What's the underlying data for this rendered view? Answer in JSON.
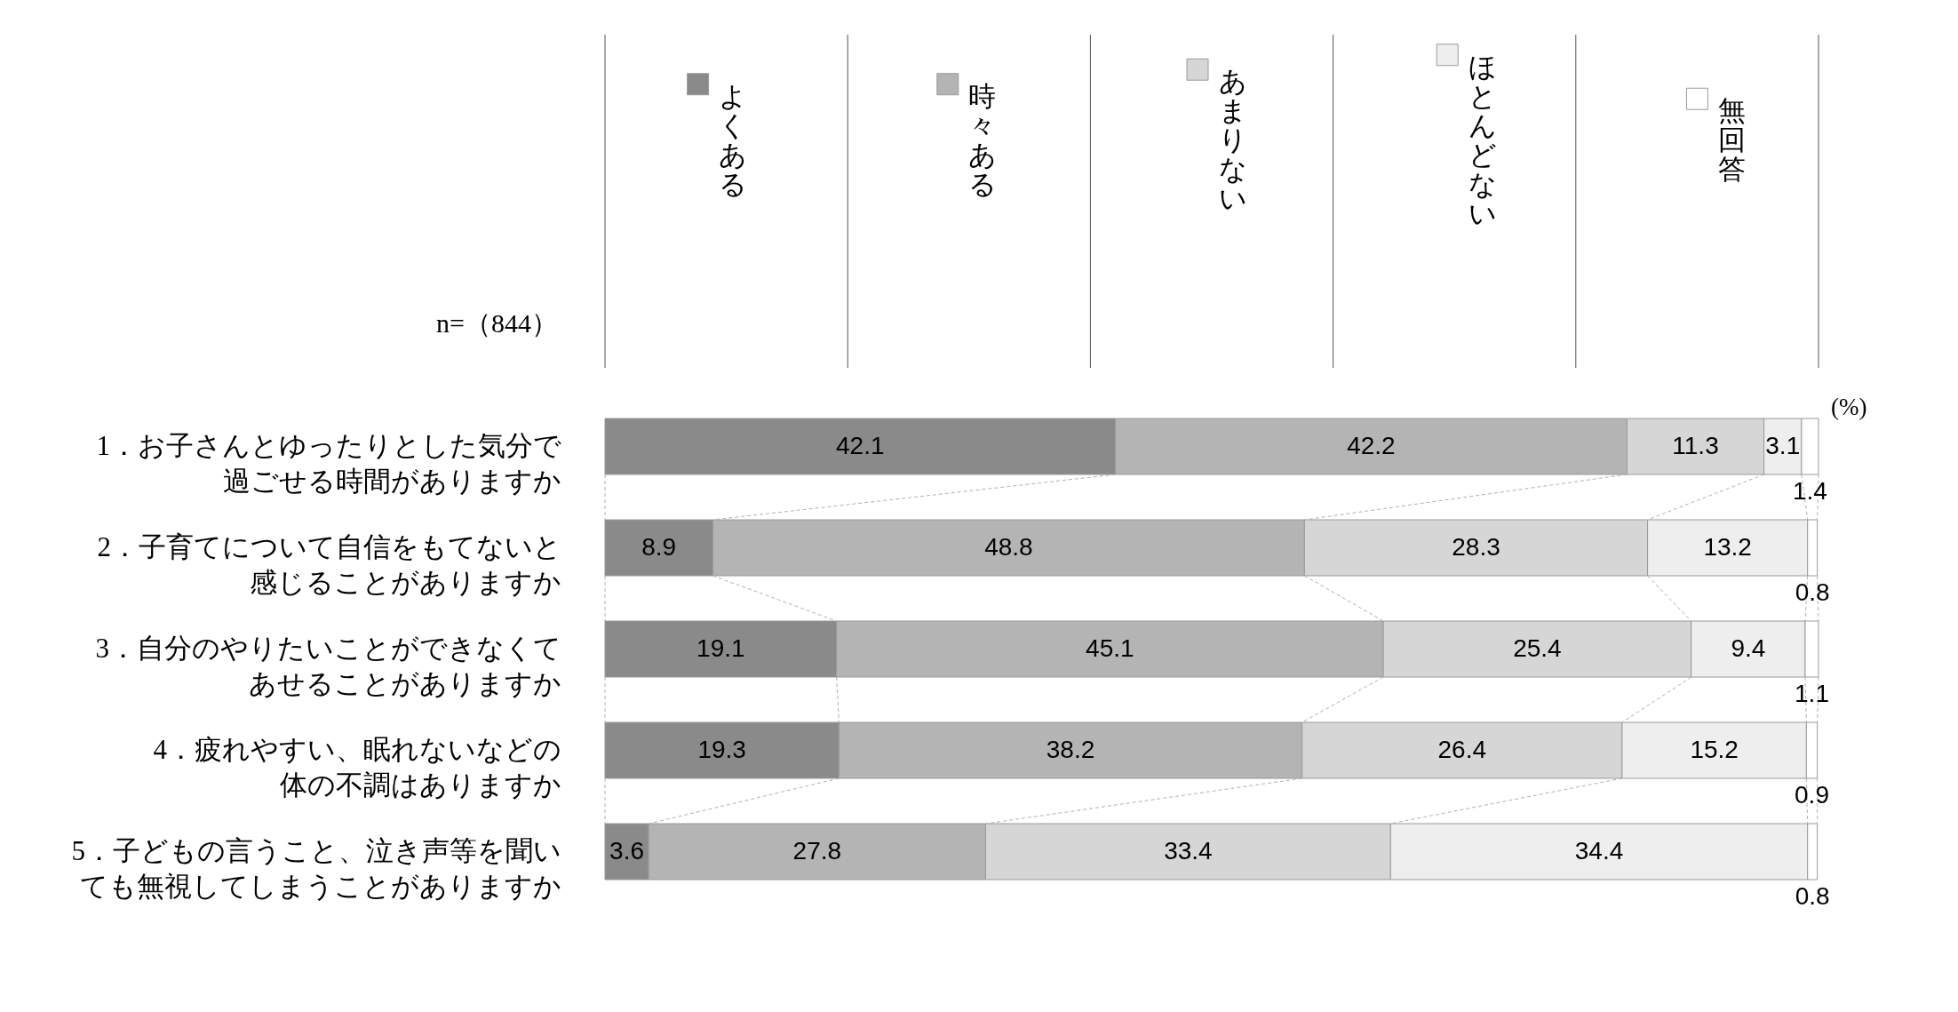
{
  "chart_data": {
    "type": "bar",
    "orientation": "horizontal",
    "stacked": true,
    "categories": [
      "1．お子さんとゆったりとした気分で過ごせる時間がありますか",
      "2．子育てについて自信をもてないと感じることがありますか",
      "3．自分のやりたいことができなくてあせることがありますか",
      "4．疲れやすい、眠れないなどの体の不調はありますか",
      "5．子どもの言うこと、泣き声等を聞いても無視してしまうことがありますか"
    ],
    "series": [
      {
        "name": "よくある",
        "color": "#8a8a8a",
        "values": [
          42.1,
          8.9,
          19.1,
          19.3,
          3.6
        ]
      },
      {
        "name": "時々ある",
        "color": "#b4b4b4",
        "values": [
          42.2,
          48.8,
          45.1,
          38.2,
          27.8
        ]
      },
      {
        "name": "あまりない",
        "color": "#d6d6d6",
        "values": [
          11.3,
          28.3,
          25.4,
          26.4,
          33.4
        ]
      },
      {
        "name": "ほとんどない",
        "color": "#eeeeee",
        "values": [
          3.1,
          13.2,
          9.4,
          15.2,
          34.4
        ]
      },
      {
        "name": "無回答",
        "color": "#ffffff",
        "values": [
          1.4,
          0.8,
          1.1,
          0.9,
          0.8
        ]
      }
    ],
    "data_labels": true,
    "legend": "top",
    "tick_labels": "y",
    "annotations": [
      "n=（844）",
      "(%)"
    ]
  }
}
